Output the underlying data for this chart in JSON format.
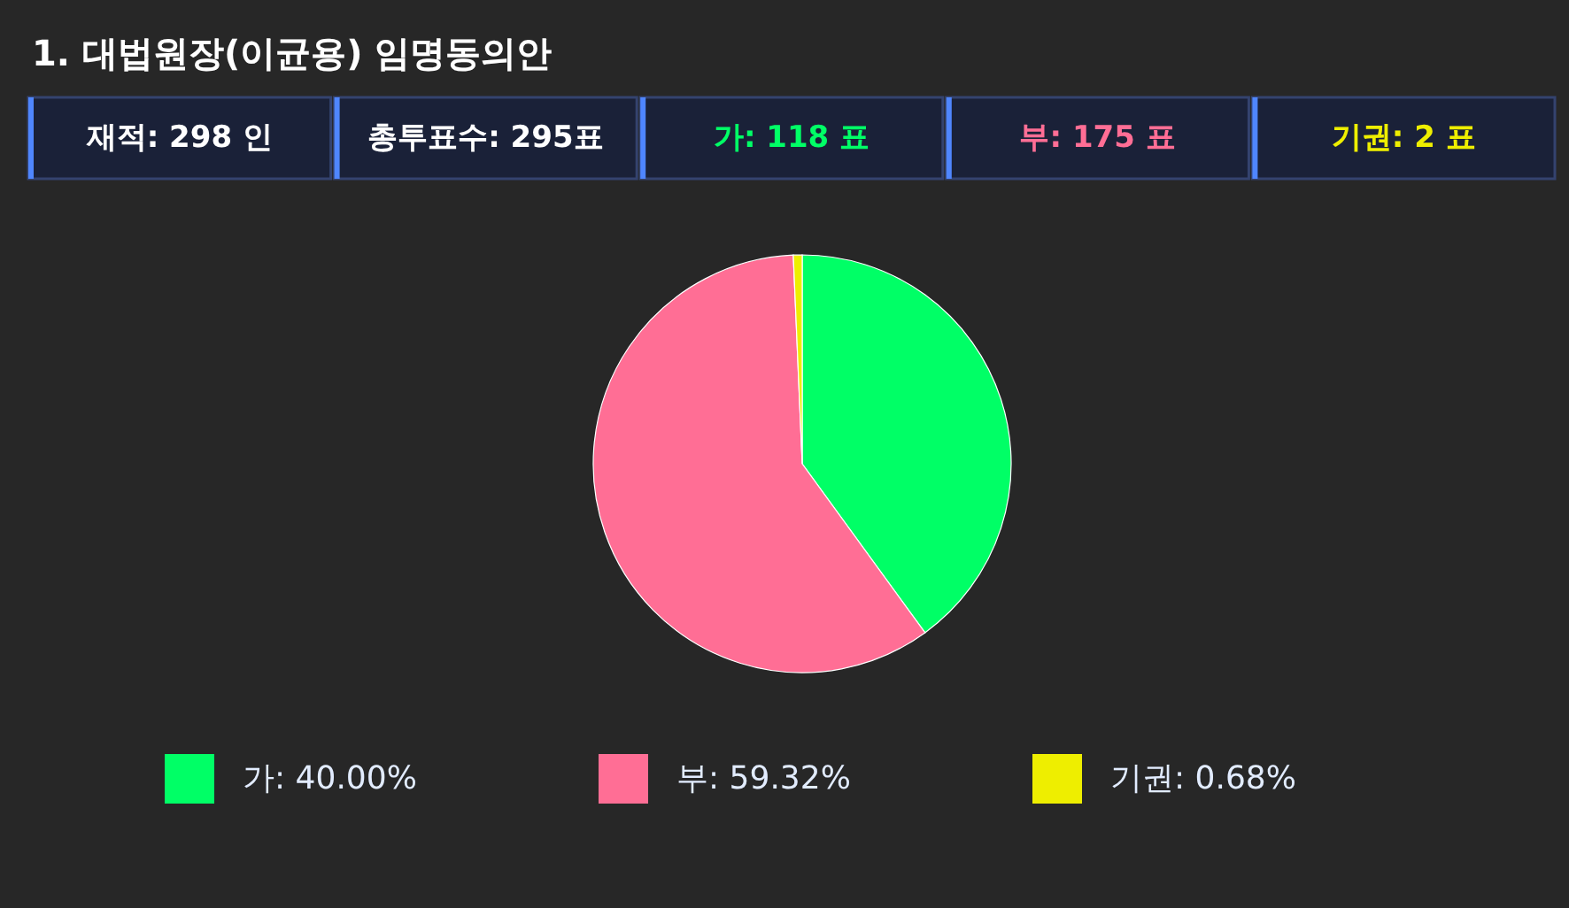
{
  "chart_data": {
    "type": "pie",
    "title": "1. 대법원장(이균용) 임명동의안",
    "annotations": [
      "재적: 298 인",
      "총투표수: 295표",
      "가: 118 표",
      "부: 175 표",
      "기권: 2 표"
    ],
    "categories": [
      "가",
      "부",
      "기권"
    ],
    "values": [
      40.0,
      59.32,
      0.68
    ],
    "value_labels": [
      "40.00%",
      "59.32%",
      "0.68%"
    ],
    "colors": [
      "#00ff66",
      "#ff6e95",
      "#eeee00"
    ],
    "legend": "bottom"
  }
}
